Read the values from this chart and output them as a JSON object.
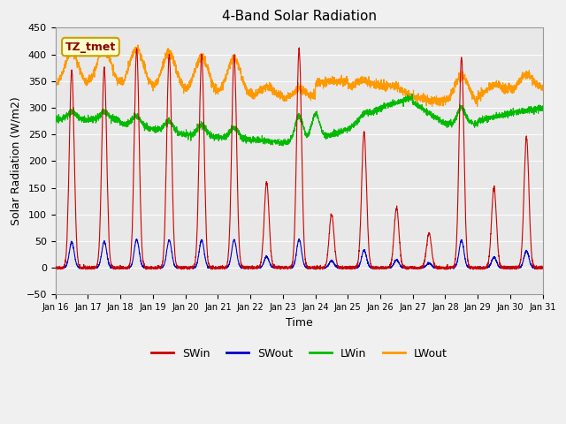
{
  "title": "4-Band Solar Radiation",
  "xlabel": "Time",
  "ylabel": "Solar Radiation (W/m2)",
  "ylim": [
    -50,
    450
  ],
  "xlim": [
    0,
    360
  ],
  "fig_facecolor": "#f0f0f0",
  "plot_facecolor": "#e8e8e8",
  "annotation_text": "TZ_tmet",
  "annotation_bg": "#ffffcc",
  "annotation_border": "#c8a000",
  "SWin_color": "#cc0000",
  "SWout_color": "#0000cc",
  "LWin_color": "#00bb00",
  "LWout_color": "#ff9900",
  "line_width": 0.8,
  "tick_labels": [
    "Jan 16",
    "Jan 17",
    "Jan 18",
    "Jan 19",
    "Jan 20",
    "Jan 21",
    "Jan 22",
    "Jan 23",
    "Jan 24",
    "Jan 25",
    "Jan 26",
    "Jan 27",
    "Jan 28",
    "Jan 29",
    "Jan 30",
    "Jan 31"
  ],
  "tick_positions": [
    0,
    24,
    48,
    72,
    96,
    120,
    144,
    168,
    192,
    216,
    240,
    264,
    288,
    312,
    336,
    360
  ],
  "yticks": [
    -50,
    0,
    50,
    100,
    150,
    200,
    250,
    300,
    350,
    400,
    450
  ]
}
